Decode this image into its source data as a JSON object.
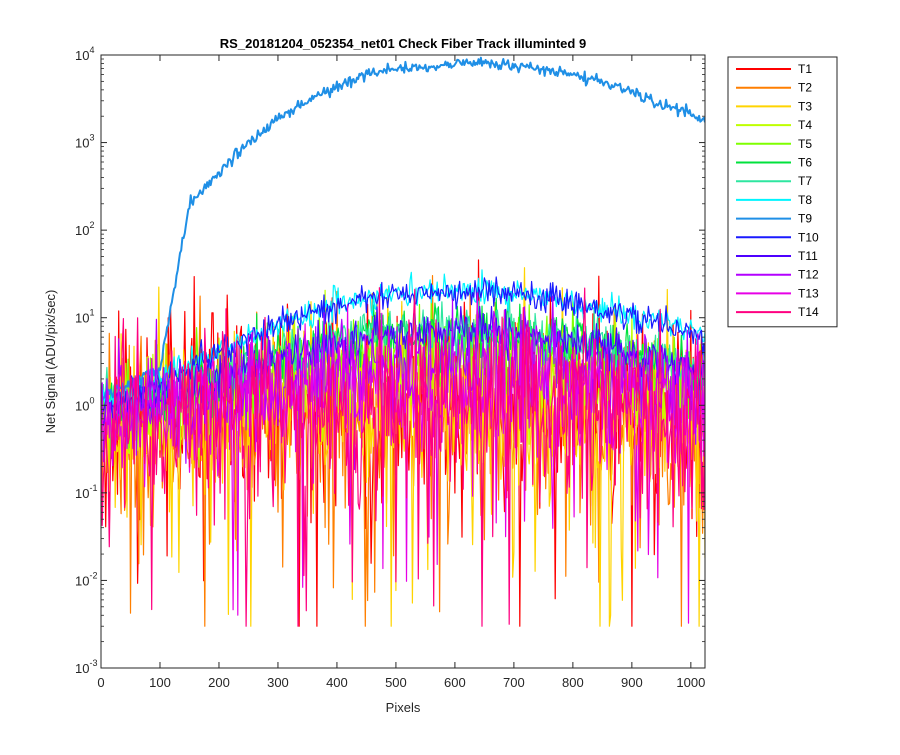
{
  "chart_data": {
    "type": "line",
    "title": "RS_20181204_052354_net01   Check Fiber     Track illuminted 9",
    "xlabel": "Pixels",
    "ylabel": "Net Signal (ADU/pix/sec)",
    "xlim": [
      0,
      1024
    ],
    "ylim": [
      0.001,
      10000
    ],
    "yscale": "log",
    "xticks": [
      0,
      100,
      200,
      300,
      400,
      500,
      600,
      700,
      800,
      900,
      1000
    ],
    "yticks": [
      {
        "value": 0.001,
        "base": "10",
        "exp": "-3"
      },
      {
        "value": 0.01,
        "base": "10",
        "exp": "-2"
      },
      {
        "value": 0.1,
        "base": "10",
        "exp": "-1"
      },
      {
        "value": 1,
        "base": "10",
        "exp": "0"
      },
      {
        "value": 10,
        "base": "10",
        "exp": "1"
      },
      {
        "value": 100,
        "base": "10",
        "exp": "2"
      },
      {
        "value": 1000,
        "base": "10",
        "exp": "3"
      },
      {
        "value": 10000,
        "base": "10",
        "exp": "4"
      }
    ],
    "grid": false,
    "legend_position": "outside-right",
    "x_sampled": [
      0,
      50,
      100,
      150,
      200,
      250,
      300,
      350,
      400,
      450,
      500,
      550,
      600,
      650,
      700,
      750,
      800,
      850,
      900,
      950,
      1000,
      1024
    ],
    "series": [
      {
        "name": "T1",
        "color": "#ff0000",
        "noise": 0.55,
        "values": [
          0.6,
          0.65,
          0.7,
          0.75,
          0.8,
          0.85,
          0.9,
          0.95,
          1.0,
          1.0,
          1.05,
          1.05,
          1.05,
          1.05,
          1.0,
          1.0,
          0.95,
          0.9,
          0.85,
          0.8,
          0.75,
          0.7
        ]
      },
      {
        "name": "T2",
        "color": "#ff7f00",
        "noise": 0.55,
        "values": [
          0.5,
          0.55,
          0.6,
          0.65,
          0.7,
          0.75,
          0.8,
          0.85,
          0.9,
          0.9,
          0.95,
          0.95,
          0.95,
          0.95,
          0.9,
          0.9,
          0.85,
          0.8,
          0.75,
          0.7,
          0.65,
          0.6
        ]
      },
      {
        "name": "T3",
        "color": "#ffd400",
        "noise": 0.5,
        "values": [
          0.55,
          0.6,
          0.65,
          0.7,
          0.75,
          0.8,
          0.85,
          0.9,
          0.95,
          1.0,
          1.0,
          1.0,
          1.0,
          1.0,
          0.95,
          0.95,
          0.9,
          0.85,
          0.8,
          0.75,
          0.7,
          0.65
        ]
      },
      {
        "name": "T4",
        "color": "#bfff00",
        "noise": 0.3,
        "values": [
          0.8,
          0.85,
          0.95,
          1.1,
          1.3,
          1.5,
          1.7,
          1.9,
          2.1,
          2.3,
          2.4,
          2.5,
          2.5,
          2.5,
          2.4,
          2.3,
          2.1,
          1.9,
          1.7,
          1.5,
          1.3,
          1.2
        ]
      },
      {
        "name": "T5",
        "color": "#7fff00",
        "noise": 0.22,
        "values": [
          0.9,
          1.0,
          1.1,
          1.3,
          1.6,
          1.9,
          2.3,
          2.8,
          3.2,
          3.6,
          3.9,
          4.0,
          4.1,
          4.0,
          3.9,
          3.7,
          3.4,
          3.0,
          2.6,
          2.3,
          2.0,
          1.8
        ]
      },
      {
        "name": "T6",
        "color": "#00e23c",
        "noise": 0.15,
        "values": [
          1.0,
          1.1,
          1.3,
          1.6,
          2.1,
          2.7,
          3.5,
          4.4,
          5.3,
          6.0,
          6.6,
          7.0,
          7.1,
          7.0,
          6.6,
          6.1,
          5.4,
          4.6,
          3.8,
          3.1,
          2.5,
          2.2
        ]
      },
      {
        "name": "T7",
        "color": "#2ee6a0",
        "noise": 0.15,
        "values": [
          1.0,
          1.1,
          1.3,
          1.7,
          2.2,
          2.9,
          3.7,
          4.6,
          5.5,
          6.3,
          6.9,
          7.3,
          7.4,
          7.3,
          6.9,
          6.3,
          5.6,
          4.8,
          4.0,
          3.2,
          2.6,
          2.3
        ]
      },
      {
        "name": "T8",
        "color": "#00f5ff",
        "noise": 0.08,
        "values": [
          1.1,
          1.4,
          1.9,
          2.8,
          4.0,
          5.8,
          8.2,
          11.0,
          14.0,
          16.5,
          18.5,
          19.5,
          20.0,
          19.5,
          18.5,
          17.0,
          15.0,
          13.0,
          11.0,
          9.0,
          7.0,
          6.0
        ]
      },
      {
        "name": "T9",
        "color": "#1f8fe6",
        "noise": 0.03,
        "values": [
          1.2,
          1.8,
          2.5,
          200,
          450,
          1000,
          1900,
          3000,
          4400,
          6000,
          7200,
          7200,
          8000,
          8100,
          7700,
          6800,
          6000,
          5000,
          3900,
          2700,
          2200,
          1700
        ]
      },
      {
        "name": "T10",
        "color": "#1a1aff",
        "noise": 0.08,
        "values": [
          1.0,
          1.3,
          1.8,
          2.7,
          4.0,
          5.8,
          8.0,
          11.0,
          14.0,
          16.5,
          18.0,
          19.0,
          19.5,
          19.0,
          18.0,
          16.5,
          14.5,
          12.5,
          10.5,
          8.5,
          6.8,
          5.5
        ]
      },
      {
        "name": "T11",
        "color": "#4d00ff",
        "noise": 0.12,
        "values": [
          0.9,
          1.0,
          1.2,
          1.5,
          2.0,
          2.7,
          3.5,
          4.4,
          5.2,
          5.9,
          6.3,
          6.6,
          6.7,
          6.6,
          6.3,
          5.9,
          5.2,
          4.5,
          3.8,
          3.1,
          2.6,
          2.3
        ]
      },
      {
        "name": "T12",
        "color": "#b300ff",
        "noise": 0.3,
        "values": [
          0.8,
          0.9,
          0.95,
          1.1,
          1.3,
          1.6,
          1.9,
          2.2,
          2.5,
          2.7,
          2.9,
          3.0,
          3.0,
          3.0,
          2.9,
          2.7,
          2.5,
          2.2,
          1.9,
          1.6,
          1.4,
          1.2
        ]
      },
      {
        "name": "T13",
        "color": "#e600e6",
        "noise": 0.4,
        "values": [
          0.7,
          0.75,
          0.8,
          0.9,
          1.0,
          1.1,
          1.2,
          1.35,
          1.5,
          1.6,
          1.65,
          1.7,
          1.7,
          1.7,
          1.65,
          1.6,
          1.5,
          1.35,
          1.2,
          1.1,
          1.0,
          0.9
        ]
      },
      {
        "name": "T14",
        "color": "#ff0080",
        "noise": 0.5,
        "values": [
          0.6,
          0.65,
          0.7,
          0.75,
          0.8,
          0.85,
          0.9,
          0.95,
          1.0,
          1.0,
          1.0,
          1.0,
          1.0,
          1.0,
          1.0,
          1.0,
          0.95,
          0.9,
          0.85,
          0.8,
          0.75,
          0.7
        ]
      }
    ]
  }
}
